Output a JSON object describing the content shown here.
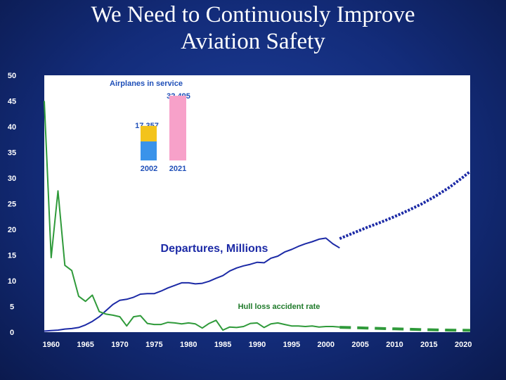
{
  "slide": {
    "title_line1": "We Need to Continuously Improve",
    "title_line2": "Aviation Safety"
  },
  "colors": {
    "departures": "#1c2aa6",
    "accident": "#2f9a3a",
    "bar_2002_lower": "#3a93ea",
    "bar_2002_upper": "#f3c31b",
    "bar_2021": "#f7a1c9",
    "inset_label": "#1f4fb8",
    "accident_label": "#1f7a2a"
  },
  "chart_data": {
    "type": "line",
    "title": "",
    "xlabel": "",
    "ylabel": "",
    "xlim": [
      1959,
      2021
    ],
    "ylim": [
      0,
      50
    ],
    "x_ticks": [
      1960,
      1965,
      1970,
      1975,
      1980,
      1985,
      1990,
      1995,
      2000,
      2005,
      2010,
      2015,
      2020
    ],
    "y_ticks": [
      0,
      5,
      10,
      15,
      20,
      25,
      30,
      35,
      40,
      45,
      50
    ],
    "series": [
      {
        "name": "Departures, Millions",
        "label": "Departures, Millions",
        "style": "solid",
        "x": [
          1959,
          1960,
          1961,
          1962,
          1963,
          1964,
          1965,
          1966,
          1967,
          1968,
          1969,
          1970,
          1971,
          1972,
          1973,
          1974,
          1975,
          1976,
          1977,
          1978,
          1979,
          1980,
          1981,
          1982,
          1983,
          1984,
          1985,
          1986,
          1987,
          1988,
          1989,
          1990,
          1991,
          1992,
          1993,
          1994,
          1995,
          1996,
          1997,
          1998,
          1999,
          2000,
          2001,
          2002
        ],
        "y": [
          0.2,
          0.3,
          0.4,
          0.6,
          0.7,
          0.9,
          1.4,
          2.1,
          3.0,
          4.2,
          5.4,
          6.2,
          6.4,
          6.8,
          7.4,
          7.5,
          7.5,
          8.0,
          8.6,
          9.1,
          9.6,
          9.6,
          9.4,
          9.5,
          9.9,
          10.5,
          11.0,
          11.9,
          12.5,
          12.9,
          13.2,
          13.6,
          13.5,
          14.4,
          14.8,
          15.6,
          16.1,
          16.7,
          17.2,
          17.6,
          18.1,
          18.3,
          17.2,
          16.4
        ]
      },
      {
        "name": "Departures forecast",
        "style": "dotted",
        "x": [
          2002,
          2004,
          2006,
          2008,
          2010,
          2012,
          2014,
          2016,
          2018,
          2020,
          2021
        ],
        "y": [
          18.2,
          19.3,
          20.4,
          21.4,
          22.5,
          23.7,
          25.0,
          26.5,
          28.2,
          30.2,
          31.3
        ]
      },
      {
        "name": "Hull loss accident rate",
        "label": "Hull loss accident rate",
        "style": "solid",
        "x": [
          1959,
          1960,
          1961,
          1962,
          1963,
          1964,
          1965,
          1966,
          1967,
          1968,
          1969,
          1970,
          1971,
          1972,
          1973,
          1974,
          1975,
          1976,
          1977,
          1978,
          1979,
          1980,
          1981,
          1982,
          1983,
          1984,
          1985,
          1986,
          1987,
          1988,
          1989,
          1990,
          1991,
          1992,
          1993,
          1994,
          1995,
          1996,
          1997,
          1998,
          1999,
          2000,
          2001,
          2002
        ],
        "y": [
          45.0,
          14.5,
          27.5,
          13.0,
          12.0,
          7.0,
          6.0,
          7.2,
          4.0,
          3.5,
          3.3,
          3.0,
          1.2,
          3.0,
          3.2,
          1.7,
          1.5,
          1.5,
          1.9,
          1.8,
          1.6,
          1.8,
          1.6,
          0.8,
          1.7,
          2.3,
          0.4,
          1.0,
          0.9,
          1.1,
          1.7,
          1.8,
          0.9,
          1.6,
          1.8,
          1.5,
          1.2,
          1.2,
          1.1,
          1.2,
          1.0,
          1.1,
          1.1,
          1.0
        ]
      },
      {
        "name": "Accident rate forecast",
        "style": "dashed",
        "x": [
          2002,
          2006,
          2010,
          2014,
          2018,
          2021
        ],
        "y": [
          0.95,
          0.8,
          0.65,
          0.5,
          0.4,
          0.35
        ]
      }
    ],
    "annotations": [
      {
        "text": "Departures, Millions",
        "x": 1985.5,
        "y": 16.3
      },
      {
        "text": "Hull loss accident rate",
        "x": 1996,
        "y": 4.8
      }
    ],
    "inset": {
      "title": "Airplanes in service",
      "bars": [
        {
          "year": "2002",
          "value": 17357,
          "value_label": "17,357"
        },
        {
          "year": "2021",
          "value": 32495,
          "value_label": "32,495"
        }
      ]
    }
  }
}
